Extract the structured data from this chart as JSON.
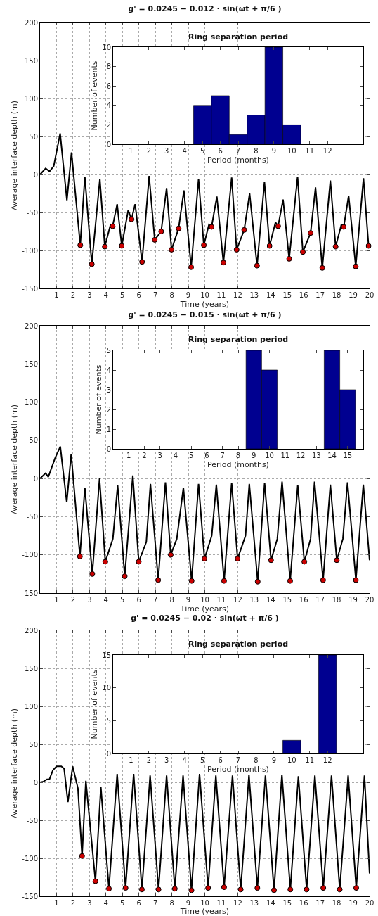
{
  "chart_data": [
    {
      "type": "line",
      "title": "g' = 0.0245 − 0.012 · sin(ωt + π/6 )",
      "xlabel": "Time (years)",
      "ylabel": "Average interface depth (m)",
      "xlim": [
        0,
        20
      ],
      "xticks": [
        1,
        2,
        3,
        4,
        5,
        6,
        7,
        8,
        9,
        10,
        11,
        12,
        13,
        14,
        15,
        16,
        17,
        18,
        19,
        20
      ],
      "ylim": [
        -150,
        200
      ],
      "yticks": [
        -150,
        -100,
        -50,
        0,
        50,
        100,
        150,
        200
      ],
      "grid": true,
      "series": [
        {
          "type": "line",
          "color": "#000000",
          "x": [
            0,
            0.34,
            0.58,
            0.83,
            1.22,
            1.63,
            1.91,
            2.44,
            2.72,
            3.14,
            3.63,
            3.93,
            4.28,
            4.405,
            4.68,
            4.96,
            5.35,
            5.55,
            5.77,
            6.19,
            6.62,
            6.96,
            7.35,
            7.68,
            7.98,
            8.41,
            8.73,
            9.17,
            9.62,
            9.94,
            10.25,
            10.41,
            10.73,
            11.13,
            11.63,
            11.93,
            12.39,
            12.72,
            13.17,
            13.62,
            13.93,
            14.29,
            14.45,
            14.75,
            15.12,
            15.63,
            15.95,
            16.42,
            16.72,
            17.13,
            17.62,
            17.94,
            18.29,
            18.43,
            18.73,
            19.16,
            19.63,
            19.94,
            20
          ],
          "values": [
            0,
            8,
            4,
            11,
            54,
            -34,
            29,
            -93,
            -3,
            -118,
            -6,
            -95,
            -66,
            -68,
            -39,
            -94,
            -47,
            -59,
            -39,
            -115,
            -2,
            -86,
            -75,
            -18,
            -99,
            -71,
            -21,
            -122,
            -6,
            -93,
            -66,
            -69,
            -29,
            -116,
            -4,
            -99,
            -73,
            -25,
            -120,
            -10,
            -94,
            -63,
            -68,
            -33,
            -111,
            -3,
            -102,
            -77,
            -17,
            -123,
            -8,
            -95,
            -66,
            -69,
            -28,
            -121,
            -5,
            -94,
            -92
          ]
        },
        {
          "type": "scatter",
          "color": "#cc0000",
          "marker": "circle",
          "x": [
            2.44,
            3.14,
            3.93,
            4.405,
            4.96,
            5.55,
            6.19,
            6.96,
            7.35,
            7.98,
            8.41,
            9.17,
            9.94,
            10.41,
            11.13,
            11.93,
            12.39,
            13.17,
            13.93,
            14.45,
            15.12,
            15.95,
            16.42,
            17.13,
            17.94,
            18.43,
            19.16,
            19.94
          ],
          "values": [
            -93,
            -118,
            -95,
            -68,
            -94,
            -59,
            -115,
            -86,
            -75,
            -99,
            -71,
            -122,
            -93,
            -69,
            -116,
            -99,
            -73,
            -120,
            -94,
            -68,
            -111,
            -102,
            -77,
            -123,
            -95,
            -69,
            -121,
            -94
          ]
        }
      ]
    },
    {
      "type": "histogram",
      "title": "Ring separation period",
      "xlabel": "Period (months)",
      "ylabel": "Number of events",
      "color": "#000090",
      "bins": [
        4.5,
        5.5,
        6.5,
        7.5,
        8.5,
        9.5,
        10.5
      ],
      "values": [
        4,
        5,
        1,
        3,
        10,
        2
      ],
      "xlim": [
        0,
        14
      ],
      "xticks": [
        1,
        2,
        3,
        4,
        5,
        6,
        7,
        8,
        9,
        10,
        11,
        12
      ],
      "ylim": [
        0,
        10
      ],
      "yticks": [
        0,
        2,
        4,
        6,
        8,
        10
      ]
    },
    {
      "type": "line",
      "title": "g' = 0.0245 − 0.015 · sin(ωt + π/6 )",
      "xlabel": "Time (years)",
      "ylabel": "Average interface depth (m)",
      "xlim": [
        0,
        20
      ],
      "xticks": [
        1,
        2,
        3,
        4,
        5,
        6,
        7,
        8,
        9,
        10,
        11,
        12,
        13,
        14,
        15,
        16,
        17,
        18,
        19,
        20
      ],
      "ylim": [
        -150,
        200
      ],
      "yticks": [
        -150,
        -100,
        -50,
        0,
        50,
        100,
        150,
        200
      ],
      "grid": true,
      "series": [
        {
          "type": "line",
          "color": "#000000",
          "x": [
            0,
            0.34,
            0.5,
            0.9,
            1.23,
            1.62,
            1.89,
            2.42,
            2.72,
            3.17,
            3.61,
            3.96,
            4.42,
            4.71,
            5.14,
            5.63,
            5.99,
            6.45,
            6.7,
            7.17,
            7.61,
            7.93,
            8.3,
            8.7,
            9.2,
            9.62,
            9.98,
            10.42,
            10.7,
            11.17,
            11.63,
            11.99,
            12.47,
            12.7,
            13.21,
            13.63,
            14.02,
            14.4,
            14.69,
            15.18,
            15.64,
            16.04,
            16.42,
            16.66,
            17.18,
            17.62,
            18.01,
            18.38,
            18.66,
            19.17,
            19.62,
            20
          ],
          "values": [
            0,
            7,
            2,
            26,
            42,
            -31,
            32,
            -102,
            -12,
            -125,
            0,
            -109,
            -79,
            -9,
            -128,
            4,
            -109,
            -83,
            -7,
            -133,
            -5,
            -100,
            -79,
            -12,
            -134,
            -7,
            -105,
            -75,
            -8,
            -134,
            -6,
            -105,
            -75,
            -7,
            -135,
            -6,
            -107,
            -79,
            -4,
            -134,
            -9,
            -109,
            -79,
            -4,
            -133,
            -8,
            -107,
            -79,
            -5,
            -133,
            -8,
            -107
          ]
        },
        {
          "type": "scatter",
          "color": "#cc0000",
          "marker": "circle",
          "x": [
            2.42,
            3.17,
            3.96,
            5.14,
            5.99,
            7.17,
            7.93,
            9.2,
            9.98,
            11.17,
            11.99,
            13.21,
            14.02,
            15.18,
            16.04,
            17.18,
            18.01,
            19.17
          ],
          "values": [
            -102,
            -125,
            -109,
            -128,
            -109,
            -133,
            -100,
            -134,
            -105,
            -134,
            -105,
            -135,
            -107,
            -134,
            -109,
            -133,
            -107,
            -133
          ]
        }
      ]
    },
    {
      "type": "histogram",
      "title": "Ring separation period",
      "xlabel": "Period (months)",
      "ylabel": "Number of events",
      "color": "#000090",
      "bins": [
        8.5,
        9.5,
        10.5,
        11.5,
        12.5,
        13.5,
        14.5,
        15.5
      ],
      "values": [
        5,
        4,
        0,
        0,
        0,
        5,
        3
      ],
      "xlim": [
        0,
        16
      ],
      "xticks": [
        1,
        2,
        3,
        4,
        5,
        6,
        7,
        8,
        9,
        10,
        11,
        12,
        13,
        14,
        15
      ],
      "ylim": [
        0,
        5
      ],
      "yticks": [
        0,
        1,
        2,
        3,
        4,
        5
      ]
    },
    {
      "type": "line",
      "title": "g' = 0.0245 − 0.02 · sin(ωt + π/6 )",
      "xlabel": "Time (years)",
      "ylabel": "Average interface depth (m)",
      "xlim": [
        0,
        20
      ],
      "xticks": [
        1,
        2,
        3,
        4,
        5,
        6,
        7,
        8,
        9,
        10,
        11,
        12,
        13,
        14,
        15,
        16,
        17,
        18,
        19,
        20
      ],
      "ylim": [
        -150,
        200
      ],
      "yticks": [
        -150,
        -100,
        -50,
        0,
        50,
        100,
        150,
        200
      ],
      "grid": true,
      "series": [
        {
          "type": "line",
          "color": "#000000",
          "x": [
            0,
            0.21,
            0.42,
            0.57,
            0.78,
            1.0,
            1.29,
            1.46,
            1.69,
            1.98,
            2.3,
            2.55,
            2.78,
            3.36,
            3.69,
            4.18,
            4.68,
            5.19,
            5.68,
            6.18,
            6.68,
            7.19,
            7.68,
            8.18,
            8.68,
            9.19,
            9.68,
            10.2,
            10.67,
            11.17,
            11.68,
            12.18,
            12.68,
            13.19,
            13.68,
            14.2,
            14.68,
            15.19,
            15.68,
            16.18,
            16.68,
            17.19,
            17.69,
            18.19,
            18.7,
            19.19,
            19.69,
            20
          ],
          "values": [
            0,
            1,
            4,
            4,
            16,
            21,
            21,
            18,
            -26,
            21,
            -8,
            -97,
            2,
            -130,
            -6,
            -140,
            11,
            -139,
            11,
            -141,
            9,
            -141,
            9,
            -140,
            9,
            -142,
            11,
            -139,
            9,
            -138,
            9,
            -141,
            10,
            -139,
            9,
            -142,
            10,
            -141,
            8,
            -141,
            9,
            -139,
            9,
            -141,
            9,
            -139,
            9,
            -120
          ]
        },
        {
          "type": "scatter",
          "color": "#cc0000",
          "marker": "circle",
          "x": [
            2.55,
            3.36,
            4.18,
            5.19,
            6.18,
            7.19,
            8.18,
            9.19,
            10.2,
            11.17,
            12.18,
            13.19,
            14.2,
            15.19,
            16.18,
            17.19,
            18.19,
            19.19
          ],
          "values": [
            -97,
            -130,
            -140,
            -139,
            -141,
            -141,
            -140,
            -142,
            -139,
            -138,
            -141,
            -139,
            -142,
            -141,
            -141,
            -139,
            -141,
            -139
          ]
        }
      ]
    },
    {
      "type": "histogram",
      "title": "Ring separation period",
      "xlabel": "Period (months)",
      "ylabel": "Number of events",
      "color": "#000090",
      "bins": [
        9.5,
        10.5,
        11.5,
        12.5
      ],
      "values": [
        2,
        0,
        15
      ],
      "xlim": [
        0,
        14
      ],
      "xticks": [
        1,
        2,
        3,
        4,
        5,
        6,
        7,
        8,
        9,
        10,
        11,
        12
      ],
      "ylim": [
        0,
        15
      ],
      "yticks": [
        0,
        5,
        10,
        15
      ]
    }
  ]
}
